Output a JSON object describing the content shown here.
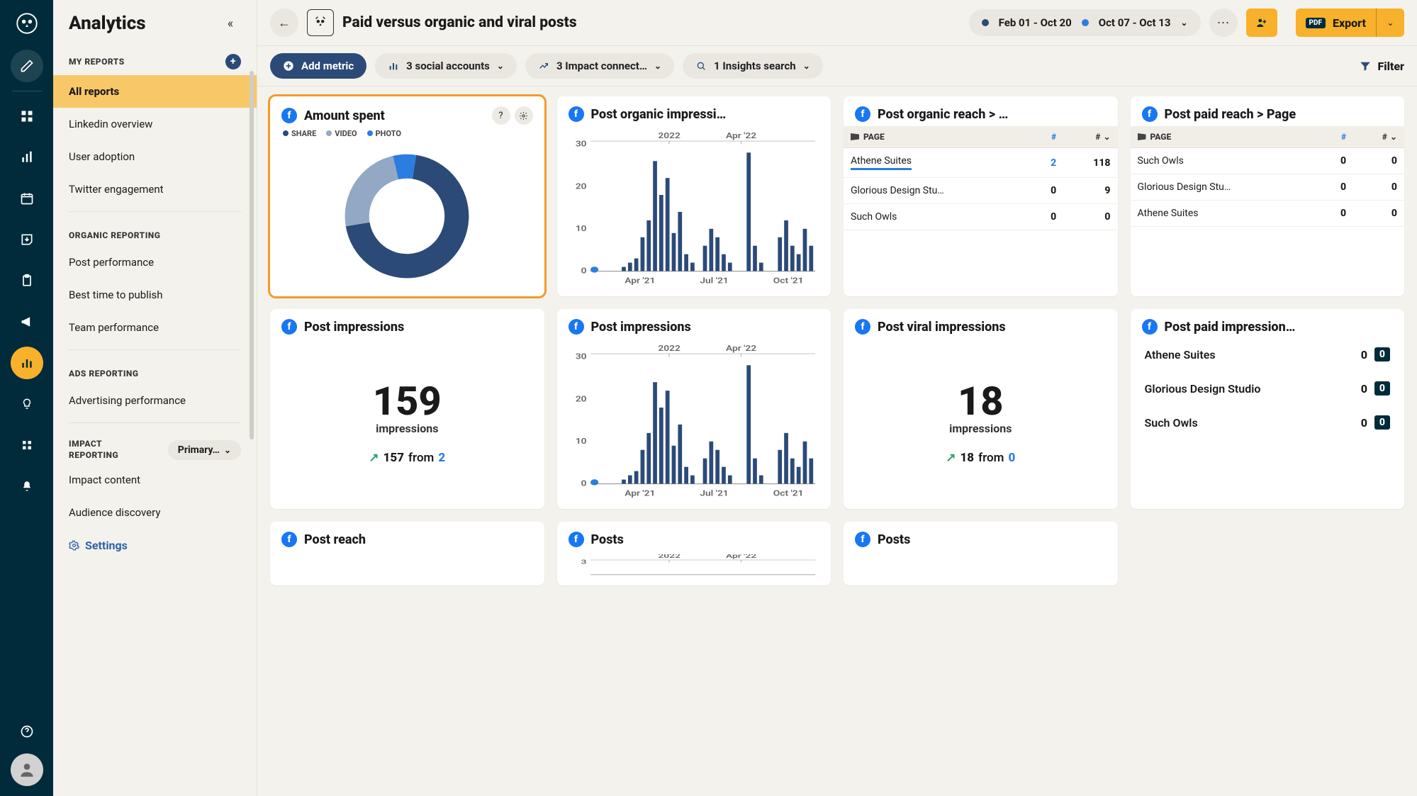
{
  "colors": {
    "rail_bg": "#012b3a",
    "accent": "#f8b12a",
    "navy": "#2b4a78",
    "blue": "#2b7de0",
    "fb": "#1877f2",
    "card_bg": "#ffffff",
    "page_bg": "#f4f2ed",
    "green": "#2fa36b",
    "donut_share": "#2b4a78",
    "donut_video": "#93a8c5",
    "donut_photo": "#2b7de0"
  },
  "sidebar": {
    "title": "Analytics",
    "sections": {
      "my_reports": {
        "label": "MY REPORTS",
        "items": [
          "All reports",
          "Linkedin overview",
          "User adoption",
          "Twitter engagement"
        ],
        "active_index": 0
      },
      "organic": {
        "label": "ORGANIC REPORTING",
        "items": [
          "Post performance",
          "Best time to publish",
          "Team performance"
        ]
      },
      "ads": {
        "label": "ADS REPORTING",
        "items": [
          "Advertising performance"
        ]
      },
      "impact": {
        "label": "IMPACT REPORTING",
        "selector": "Primary…",
        "items": [
          "Impact content",
          "Audience discovery"
        ]
      }
    },
    "settings": "Settings"
  },
  "topbar": {
    "title": "Paid versus organic and viral posts",
    "range1": "Feb 01 - Oct 20",
    "range2": "Oct 07 - Oct 13",
    "export": "Export",
    "pdf": "PDF"
  },
  "filterbar": {
    "add_metric": "Add metric",
    "social": "3 social accounts",
    "impact": "3 Impact connect…",
    "insights": "1 Insights search",
    "filter": "Filter"
  },
  "cards": {
    "amount_spent": {
      "title": "Amount spent",
      "legend": {
        "share": "SHARE",
        "video": "VIDEO",
        "photo": "PHOTO"
      },
      "donut": {
        "share": 0.7,
        "video": 0.24,
        "photo": 0.06,
        "inner_r": 56,
        "outer_r": 92
      }
    },
    "organic_impr": {
      "title": "Post organic impressi…",
      "chart": {
        "ylim": [
          0,
          30
        ],
        "yticks": [
          0,
          10,
          20,
          30
        ],
        "top_labels": [
          "2022",
          "Apr '22"
        ],
        "bottom_labels": [
          "Apr '21",
          "Jul '21",
          "Oct '21"
        ],
        "values": [
          0,
          0,
          0,
          0,
          0,
          1,
          2,
          3,
          8,
          12,
          26,
          18,
          22,
          9,
          14,
          4,
          2,
          0,
          6,
          10,
          8,
          4,
          2,
          0,
          0,
          28,
          6,
          2,
          0,
          0,
          8,
          12,
          6,
          4,
          10,
          6
        ],
        "bar_color": "#2b4a78",
        "grid_color": "#e8e6df"
      }
    },
    "organic_reach": {
      "title": "Post organic reach > …",
      "columns": {
        "page": "PAGE",
        "ha": "#",
        "hb": "#"
      },
      "rows": [
        {
          "page": "Athene Suites",
          "a": "2",
          "b": "118",
          "link": true,
          "underline": true
        },
        {
          "page": "Glorious Design Stu…",
          "a": "0",
          "b": "9"
        },
        {
          "page": "Such Owls",
          "a": "0",
          "b": "0"
        }
      ]
    },
    "paid_reach": {
      "title": "Post paid reach > Page",
      "columns": {
        "page": "PAGE",
        "ha": "#",
        "hb": "#"
      },
      "rows": [
        {
          "page": "Such Owls",
          "a": "0",
          "b": "0"
        },
        {
          "page": "Glorious Design Stu…",
          "a": "0",
          "b": "0"
        },
        {
          "page": "Athene Suites",
          "a": "0",
          "b": "0"
        }
      ]
    },
    "impressions_kpi": {
      "title": "Post impressions",
      "value": "159",
      "label": "impressions",
      "delta": "157",
      "from_word": "from",
      "prev": "2"
    },
    "impressions_chart": {
      "title": "Post impressions",
      "chart": {
        "ylim": [
          0,
          30
        ],
        "yticks": [
          0,
          10,
          20,
          30
        ],
        "top_labels": [
          "2022",
          "Apr '22"
        ],
        "bottom_labels": [
          "Apr '21",
          "Jul '21",
          "Oct '21"
        ],
        "values": [
          0,
          0,
          0,
          0,
          0,
          1,
          2,
          3,
          8,
          12,
          24,
          18,
          22,
          9,
          14,
          4,
          2,
          0,
          6,
          10,
          8,
          4,
          2,
          0,
          0,
          28,
          6,
          2,
          0,
          0,
          8,
          12,
          6,
          4,
          10,
          6
        ],
        "bar_color": "#2b4a78",
        "grid_color": "#e8e6df"
      }
    },
    "viral_kpi": {
      "title": "Post viral impressions",
      "value": "18",
      "label": "impressions",
      "delta": "18",
      "from_word": "from",
      "prev": "0"
    },
    "paid_impr_pages": {
      "title": "Post paid impression…",
      "rows": [
        {
          "name": "Athene Suites",
          "a": "0",
          "b": "0"
        },
        {
          "name": "Glorious Design Studio",
          "a": "0",
          "b": "0"
        },
        {
          "name": "Such Owls",
          "a": "0",
          "b": "0"
        }
      ]
    },
    "post_reach": {
      "title": "Post reach"
    },
    "posts_chart": {
      "title": "Posts",
      "chart": {
        "ylim": [
          0,
          3
        ],
        "yticks": [
          3
        ],
        "top_labels": [
          "2022",
          "Apr '22"
        ],
        "bottom_labels": [],
        "values": [],
        "bar_color": "#2b4a78",
        "grid_color": "#e8e6df"
      }
    },
    "posts_blank": {
      "title": "Posts"
    }
  }
}
